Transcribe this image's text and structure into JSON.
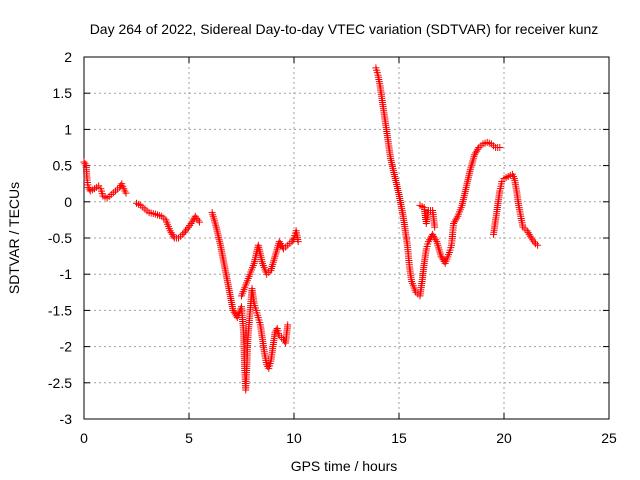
{
  "chart_data": {
    "type": "scatter",
    "title": "Day 264 of 2022, Sidereal Day-to-day VTEC variation (SDTVAR) for receiver kunz",
    "xlabel": "GPS time / hours",
    "ylabel": "SDTVAR / TECUs",
    "xlim": [
      0,
      25
    ],
    "ylim": [
      -3,
      2
    ],
    "xticks": [
      0,
      5,
      10,
      15,
      20,
      25
    ],
    "yticks": [
      2,
      1.5,
      1,
      0.5,
      0,
      -0.5,
      -1,
      -1.5,
      -2,
      -2.5,
      -3
    ],
    "grid": true,
    "legend": "none",
    "marker": "+",
    "series": [
      {
        "color": "#ff0000",
        "segments": [
          [
            [
              0.0,
              0.55
            ],
            [
              0.1,
              0.5
            ],
            [
              0.15,
              0.3
            ],
            [
              0.2,
              0.2
            ],
            [
              0.3,
              0.15
            ],
            [
              0.5,
              0.18
            ],
            [
              0.7,
              0.22
            ],
            [
              0.8,
              0.18
            ],
            [
              0.9,
              0.08
            ],
            [
              1.1,
              0.05
            ],
            [
              1.3,
              0.1
            ],
            [
              1.5,
              0.15
            ],
            [
              1.7,
              0.2
            ],
            [
              1.8,
              0.25
            ],
            [
              1.9,
              0.18
            ],
            [
              2.0,
              0.12
            ]
          ],
          [
            [
              2.5,
              -0.02
            ],
            [
              2.7,
              -0.05
            ],
            [
              2.9,
              -0.1
            ],
            [
              3.1,
              -0.15
            ],
            [
              3.4,
              -0.17
            ],
            [
              3.7,
              -0.2
            ],
            [
              3.9,
              -0.25
            ],
            [
              4.1,
              -0.4
            ],
            [
              4.3,
              -0.5
            ],
            [
              4.5,
              -0.5
            ],
            [
              4.7,
              -0.45
            ],
            [
              4.9,
              -0.38
            ],
            [
              5.1,
              -0.3
            ],
            [
              5.3,
              -0.2
            ],
            [
              5.5,
              -0.28
            ]
          ],
          [
            [
              6.1,
              -0.15
            ],
            [
              6.3,
              -0.35
            ],
            [
              6.5,
              -0.6
            ],
            [
              6.7,
              -0.9
            ],
            [
              6.9,
              -1.2
            ],
            [
              7.1,
              -1.5
            ],
            [
              7.3,
              -1.6
            ],
            [
              7.5,
              -1.45
            ],
            [
              7.6,
              -1.8
            ],
            [
              7.65,
              -2.3
            ],
            [
              7.7,
              -2.6
            ],
            [
              7.75,
              -2.3
            ],
            [
              7.8,
              -1.9
            ],
            [
              7.9,
              -1.55
            ],
            [
              8.0,
              -1.2
            ],
            [
              8.1,
              -1.4
            ],
            [
              8.2,
              -1.5
            ],
            [
              8.3,
              -1.6
            ],
            [
              8.4,
              -1.7
            ],
            [
              8.5,
              -1.9
            ],
            [
              8.6,
              -2.1
            ],
            [
              8.7,
              -2.25
            ],
            [
              8.8,
              -2.3
            ],
            [
              8.9,
              -2.2
            ],
            [
              9.0,
              -2.0
            ],
            [
              9.1,
              -1.8
            ],
            [
              9.2,
              -1.75
            ],
            [
              9.3,
              -1.85
            ],
            [
              9.5,
              -1.9
            ],
            [
              9.6,
              -1.95
            ],
            [
              9.7,
              -1.7
            ]
          ],
          [
            [
              7.5,
              -1.3
            ],
            [
              7.7,
              -1.15
            ],
            [
              7.9,
              -1.0
            ],
            [
              8.1,
              -0.85
            ],
            [
              8.3,
              -0.6
            ],
            [
              8.5,
              -0.85
            ],
            [
              8.7,
              -1.0
            ],
            [
              8.9,
              -0.95
            ],
            [
              9.1,
              -0.75
            ],
            [
              9.3,
              -0.55
            ],
            [
              9.5,
              -0.65
            ],
            [
              9.7,
              -0.6
            ],
            [
              9.9,
              -0.55
            ],
            [
              10.0,
              -0.5
            ],
            [
              10.1,
              -0.4
            ],
            [
              10.2,
              -0.55
            ]
          ],
          [
            [
              13.9,
              1.85
            ],
            [
              14.0,
              1.75
            ],
            [
              14.1,
              1.6
            ],
            [
              14.2,
              1.4
            ],
            [
              14.3,
              1.2
            ],
            [
              14.4,
              1.0
            ],
            [
              14.5,
              0.8
            ],
            [
              14.6,
              0.6
            ],
            [
              14.8,
              0.35
            ],
            [
              15.0,
              0.1
            ],
            [
              15.2,
              -0.2
            ],
            [
              15.4,
              -0.6
            ],
            [
              15.5,
              -0.9
            ],
            [
              15.6,
              -1.1
            ],
            [
              15.8,
              -1.25
            ],
            [
              16.0,
              -1.3
            ],
            [
              16.1,
              -1.1
            ],
            [
              16.2,
              -0.85
            ],
            [
              16.3,
              -0.65
            ],
            [
              16.4,
              -0.55
            ],
            [
              16.6,
              -0.45
            ],
            [
              16.8,
              -0.55
            ],
            [
              17.0,
              -0.75
            ],
            [
              17.2,
              -0.85
            ],
            [
              17.4,
              -0.7
            ],
            [
              17.5,
              -0.6
            ],
            [
              17.6,
              -0.3
            ],
            [
              17.8,
              -0.2
            ],
            [
              18.0,
              -0.05
            ],
            [
              18.2,
              0.2
            ],
            [
              18.4,
              0.45
            ],
            [
              18.6,
              0.65
            ],
            [
              18.8,
              0.75
            ],
            [
              19.0,
              0.8
            ],
            [
              19.2,
              0.82
            ],
            [
              19.4,
              0.8
            ],
            [
              19.6,
              0.75
            ],
            [
              19.8,
              0.75
            ]
          ],
          [
            [
              16.0,
              -0.05
            ],
            [
              16.2,
              -0.08
            ],
            [
              16.3,
              -0.3
            ],
            [
              16.4,
              -0.12
            ],
            [
              16.6,
              -0.12
            ],
            [
              16.7,
              -0.35
            ]
          ],
          [
            [
              19.5,
              -0.45
            ],
            [
              19.6,
              -0.25
            ],
            [
              19.7,
              -0.05
            ],
            [
              19.8,
              0.15
            ],
            [
              19.9,
              0.28
            ],
            [
              20.0,
              0.32
            ],
            [
              20.2,
              0.35
            ],
            [
              20.4,
              0.38
            ],
            [
              20.5,
              0.32
            ],
            [
              20.6,
              0.15
            ],
            [
              20.7,
              -0.05
            ],
            [
              20.8,
              -0.2
            ],
            [
              20.9,
              -0.35
            ],
            [
              21.1,
              -0.4
            ],
            [
              21.3,
              -0.5
            ],
            [
              21.5,
              -0.58
            ],
            [
              21.6,
              -0.6
            ]
          ]
        ]
      }
    ]
  }
}
